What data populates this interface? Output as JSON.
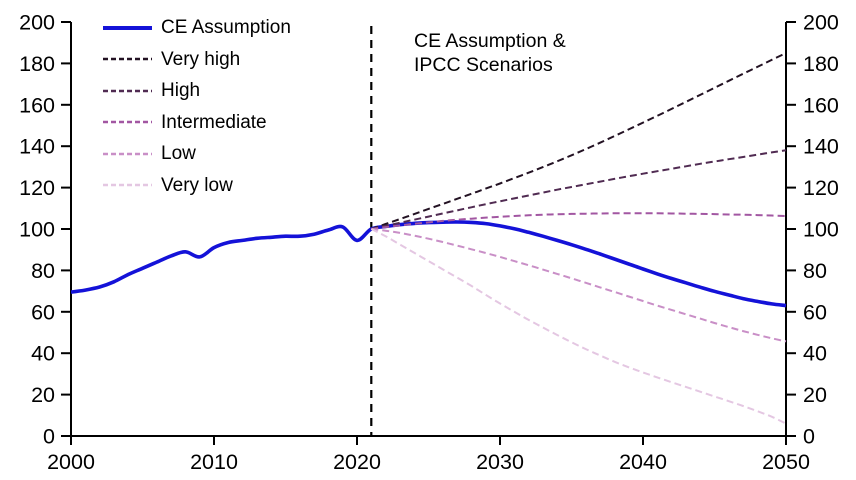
{
  "chart_data": {
    "type": "line",
    "title": "",
    "annotation": {
      "line1": "CE Assumption &",
      "line2": "IPCC Scenarios"
    },
    "legend_position": "top-left",
    "grid": false,
    "background_color": "#ffffff",
    "axis_color": "#000000",
    "x_axis": {
      "min": 2000,
      "max": 2050,
      "ticks": [
        2000,
        2010,
        2020,
        2030,
        2040,
        2050
      ]
    },
    "y_axis": {
      "min": 0,
      "max": 200,
      "ticks": [
        0,
        20,
        40,
        60,
        80,
        100,
        120,
        140,
        160,
        180,
        200
      ],
      "mirrored_right_axis": true
    },
    "divider": {
      "year": 2021,
      "style": "dashed",
      "color": "#000000"
    },
    "series": [
      {
        "name": "CE Assumption",
        "color": "#1412d8",
        "style": "solid",
        "width": 3.6,
        "x_start": 2000,
        "values": [
          69.5,
          70.5,
          72.0,
          74.5,
          78.0,
          81.0,
          84.0,
          87.0,
          89.0,
          86.5,
          91.0,
          93.5,
          94.5,
          95.5,
          96.0,
          96.5,
          96.5,
          97.5,
          99.5,
          101.0,
          94.5,
          100.0,
          101.2,
          102.1,
          102.7,
          103.1,
          103.3,
          103.4,
          103.2,
          102.6,
          101.5,
          100.1,
          98.4,
          96.5,
          94.5,
          92.4,
          90.2,
          87.9,
          85.5,
          83.1,
          80.7,
          78.3,
          76.1,
          74.0,
          71.9,
          69.9,
          68.1,
          66.4,
          65.0,
          63.8,
          63.0
        ]
      },
      {
        "name": "Very high",
        "color": "#231223",
        "style": "dashed",
        "width": 2,
        "x_start": 2021,
        "values": [
          100,
          102.4,
          104.8,
          107.2,
          109.7,
          112.1,
          114.6,
          117.0,
          119.5,
          122.0,
          124.6,
          127.2,
          129.9,
          132.7,
          135.6,
          138.6,
          141.7,
          144.9,
          148.1,
          151.4,
          154.7,
          158.0,
          161.4,
          164.8,
          168.2,
          171.6,
          175.0,
          178.3,
          181.7,
          185.0
        ]
      },
      {
        "name": "High",
        "color": "#502b52",
        "style": "dashed",
        "width": 2,
        "x_start": 2021,
        "values": [
          100,
          101.5,
          103.0,
          104.5,
          106.0,
          107.5,
          109.0,
          110.5,
          112.0,
          113.4,
          114.8,
          116.2,
          117.6,
          119.0,
          120.3,
          121.6,
          122.9,
          124.2,
          125.5,
          126.7,
          127.9,
          129.1,
          130.3,
          131.5,
          132.6,
          133.7,
          134.8,
          135.9,
          137.0,
          138.0
        ]
      },
      {
        "name": "Intermediate",
        "color": "#a257a2",
        "style": "dashed",
        "width": 2,
        "x_start": 2021,
        "values": [
          100,
          100.9,
          101.7,
          102.5,
          103.2,
          103.9,
          104.5,
          105.0,
          105.5,
          105.9,
          106.3,
          106.6,
          106.9,
          107.1,
          107.3,
          107.4,
          107.5,
          107.6,
          107.6,
          107.6,
          107.6,
          107.5,
          107.4,
          107.3,
          107.2,
          107.0,
          106.9,
          106.7,
          106.5,
          106.3
        ]
      },
      {
        "name": "Low",
        "color": "#c98fc7",
        "style": "dashed",
        "width": 2,
        "x_start": 2021,
        "values": [
          100,
          99.2,
          98.1,
          96.8,
          95.3,
          93.7,
          92.0,
          90.2,
          88.4,
          86.5,
          84.5,
          82.5,
          80.4,
          78.3,
          76.2,
          74.0,
          71.8,
          69.6,
          67.4,
          65.2,
          63.0,
          60.9,
          58.8,
          56.7,
          54.6,
          52.6,
          50.7,
          48.9,
          47.2,
          45.7
        ]
      },
      {
        "name": "Very low",
        "color": "#e4c7e2",
        "style": "dashed",
        "width": 2,
        "x_start": 2021,
        "values": [
          100,
          96.5,
          92.5,
          88.5,
          84.5,
          80.5,
          76.5,
          72.5,
          68.2,
          64.0,
          60.0,
          56.1,
          52.4,
          48.8,
          45.3,
          42.0,
          38.9,
          35.9,
          33.2,
          30.7,
          28.3,
          26.0,
          23.7,
          21.4,
          19.1,
          16.8,
          14.5,
          12.0,
          9.3,
          6.0
        ]
      }
    ]
  }
}
